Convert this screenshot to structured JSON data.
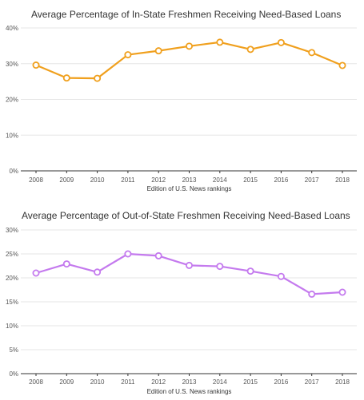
{
  "chart_data": [
    {
      "type": "line",
      "title": "Average Percentage of In-State Freshmen Receiving Need-Based Loans",
      "xlabel": "Edition of U.S. News rankings",
      "ylabel": "",
      "x": [
        "2008",
        "2009",
        "2010",
        "2011",
        "2012",
        "2013",
        "2014",
        "2015",
        "2016",
        "2017",
        "2018"
      ],
      "series": [
        {
          "values": [
            29.6,
            26.0,
            25.9,
            32.5,
            33.6,
            34.9,
            36.0,
            34.0,
            35.9,
            33.1,
            29.5
          ]
        }
      ],
      "ylim": [
        0,
        40
      ],
      "yticks": [
        "0%",
        "10%",
        "20%",
        "30%",
        "40%"
      ],
      "ytick_values": [
        0,
        10,
        20,
        30,
        40
      ],
      "color": "#f0a01e",
      "grid": true
    },
    {
      "type": "line",
      "title": "Average Percentage of Out-of-State Freshmen Receiving Need-Based Loans",
      "xlabel": "Edition of U.S. News rankings",
      "ylabel": "",
      "x": [
        "2008",
        "2009",
        "2010",
        "2011",
        "2012",
        "2013",
        "2014",
        "2015",
        "2016",
        "2017",
        "2018"
      ],
      "series": [
        {
          "values": [
            21.0,
            22.9,
            21.2,
            25.0,
            24.6,
            22.6,
            22.4,
            21.4,
            20.3,
            16.6,
            17.0
          ]
        }
      ],
      "ylim": [
        0,
        30
      ],
      "yticks": [
        "0%",
        "5%",
        "10%",
        "15%",
        "20%",
        "25%",
        "30%"
      ],
      "ytick_values": [
        0,
        5,
        10,
        15,
        20,
        25,
        30
      ],
      "color": "#c47aee",
      "grid": true
    }
  ]
}
